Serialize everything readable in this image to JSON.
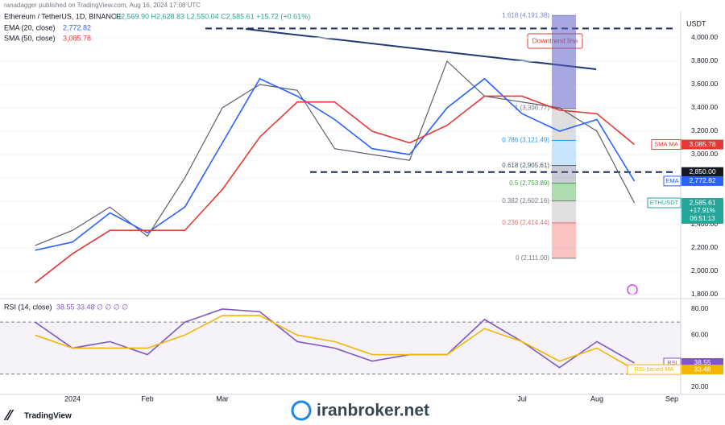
{
  "header": {
    "publisher": "ranadagger published on TradingView.com, Aug 16, 2024 17:08 UTC",
    "currency": "USDT",
    "brand": "TradingView",
    "watermark": "iranbroker.net"
  },
  "chart_data": [
    {
      "type": "line",
      "title": "Ethereum / TetherUS, 1D, BINANCE",
      "ohlc": "O2,569.90 H2,628.83 L2,550.04 C2,585.61 +15.72 (+0.61%)",
      "categories": [
        null,
        "2024",
        null,
        "Feb",
        null,
        "Mar",
        null,
        null,
        null,
        null,
        null,
        null,
        null,
        "Jul",
        null,
        "Aug",
        null,
        "Sep"
      ],
      "series": [
        {
          "name": "ETHUSDT",
          "color": "#5d606b",
          "tag": "ETHUSDT",
          "tag_color": "#26a69a",
          "last_label": "2,585.61",
          "tag_extra": [
            "+17.91%",
            "06:51:13"
          ],
          "values": [
            2220,
            2350,
            2550,
            2300,
            2800,
            3400,
            3600,
            3550,
            3050,
            3000,
            2950,
            3800,
            3500,
            3450,
            3400,
            3200,
            2585.61,
            null
          ]
        },
        {
          "name": "EMA (20, close)",
          "color": "#2962ff",
          "tag": "EMA",
          "tag_color": "#2962ff",
          "last_label": "2,772.82",
          "values": [
            2180,
            2250,
            2500,
            2330,
            2550,
            3100,
            3650,
            3500,
            3300,
            3050,
            3000,
            3400,
            3650,
            3350,
            3200,
            3300,
            2772.82,
            null
          ]
        },
        {
          "name": "SMA (50, close)",
          "color": "#e53935",
          "tag": "SMA:MA",
          "tag_color": "#e53935",
          "last_label": "3,085.78",
          "values": [
            1900,
            2150,
            2350,
            2350,
            2350,
            2700,
            3150,
            3450,
            3450,
            3200,
            3100,
            3250,
            3500,
            3500,
            3380,
            3350,
            3085.78,
            null
          ]
        }
      ],
      "ylim": [
        1772,
        4200
      ],
      "yticks": [
        {
          "value": 4000,
          "label": "4,000.00"
        },
        {
          "value": 3800,
          "label": "3,800.00"
        },
        {
          "value": 3600,
          "label": "3,600.00"
        },
        {
          "value": 3400,
          "label": "3,400.00"
        },
        {
          "value": 3200,
          "label": "3,200.00"
        },
        {
          "value": 3000,
          "label": "3,000.00"
        },
        {
          "value": 2800,
          "label": "2,800.00"
        },
        {
          "value": 2600,
          "label": "2,600.00"
        },
        {
          "value": 2400,
          "label": "2,400.00"
        },
        {
          "value": 2200,
          "label": "2,200.00"
        },
        {
          "value": 2000,
          "label": "2,000.00"
        },
        {
          "value": 1800,
          "label": "1,800.00"
        }
      ],
      "grid": true,
      "resistance": 4080,
      "support": {
        "value": 2850,
        "label": "2,850.00"
      },
      "trendline_label": "Downtrend line",
      "fib_levels": [
        {
          "value": 4191.38,
          "label": "1.618 (4,191.38)"
        },
        {
          "value": 3396.77,
          "label": "1 (3,396.77)"
        },
        {
          "value": 3121.49,
          "label": "0.786 (3,121.49)"
        },
        {
          "value": 2905.61,
          "label": "0.618 (2,905.61)"
        },
        {
          "value": 2753.89,
          "label": "0.5 (2,753.89)"
        },
        {
          "value": 2602.16,
          "label": "0.382 (2,602.16)"
        },
        {
          "value": 2414.44,
          "label": "0.236 (2,414.44)"
        },
        {
          "value": 2111.0,
          "label": "0 (2,111.00)"
        }
      ]
    },
    {
      "type": "line",
      "title": "RSI (14, close)",
      "header_values": "38.55 33.48 ∅ ∅ ∅ ∅",
      "series": [
        {
          "name": "RSI",
          "color": "#7e57c2",
          "tag": "RSI",
          "tag_color": "#7e57c2",
          "last_label": "38.55",
          "values": [
            70,
            50,
            55,
            45,
            70,
            80,
            78,
            55,
            50,
            40,
            45,
            45,
            72,
            55,
            35,
            55,
            38.55,
            null
          ]
        },
        {
          "name": "RSI-based MA",
          "color": "#f2b705",
          "tag": "RSI-based MA",
          "tag_color": "#f2b705",
          "last_label": "33.48",
          "values": [
            60,
            50,
            50,
            50,
            60,
            75,
            75,
            60,
            55,
            45,
            45,
            45,
            65,
            55,
            40,
            50,
            33.48,
            null
          ]
        }
      ],
      "ylim": [
        14.4,
        86.8
      ],
      "yticks": [
        {
          "value": 80,
          "label": "80.00"
        },
        {
          "value": 60,
          "label": "60.00"
        },
        {
          "value": 40,
          "label": "40.00"
        },
        {
          "value": 20,
          "label": "20.00"
        }
      ],
      "bands": [
        30,
        70
      ]
    }
  ]
}
